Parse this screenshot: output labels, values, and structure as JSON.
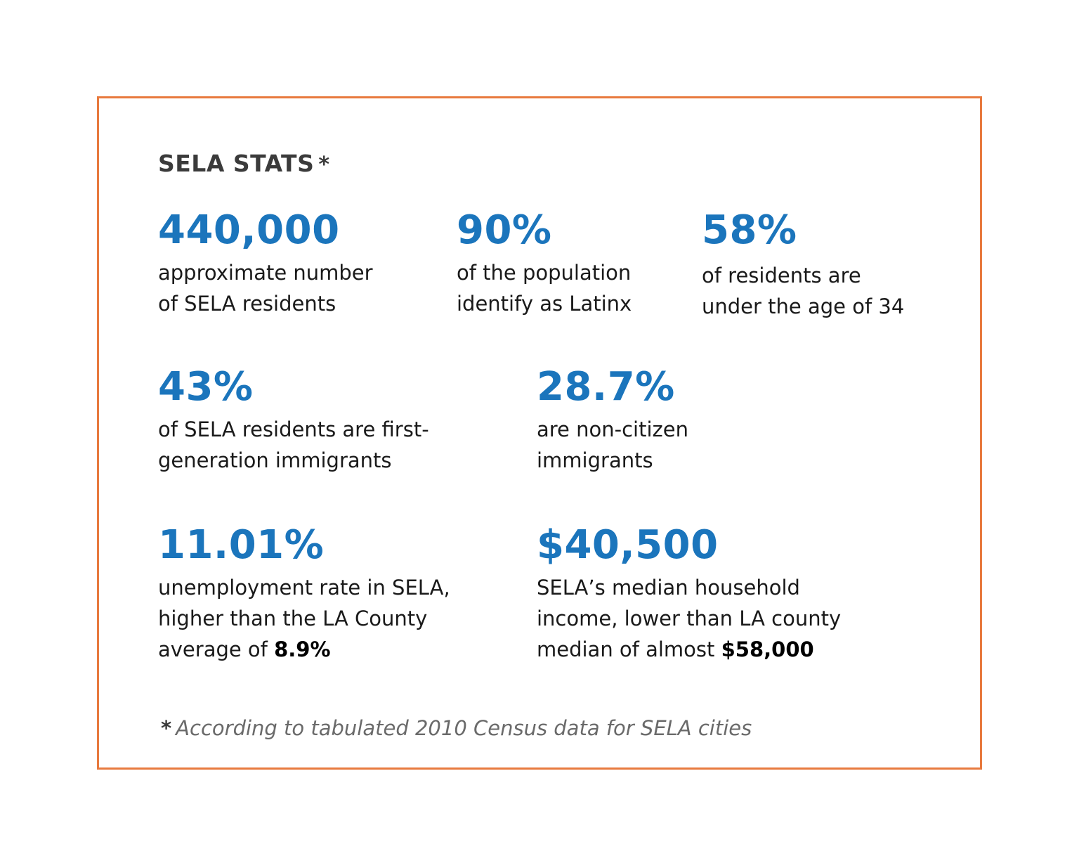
{
  "heading": {
    "title": "SELA STATS",
    "asterisk": "*"
  },
  "stats": [
    {
      "value": "440,000",
      "line1": "approximate number",
      "line2": "of SELA residents"
    },
    {
      "value": "90%",
      "line1": "of the population",
      "line2": "identify as Latinx"
    },
    {
      "value": "58%",
      "line1": "of residents are",
      "line2": "under the age of 34"
    },
    {
      "value": "43%",
      "line1": "of SELA residents are first-",
      "line2": "generation immigrants"
    },
    {
      "value": "28.7%",
      "line1": "are non-citizen",
      "line2": "immigrants"
    },
    {
      "value": "11.01%",
      "line1": "unemployment rate in SELA,",
      "line2": "higher than the LA County",
      "line3_prefix": "average of ",
      "line3_bold": "8.9%"
    },
    {
      "value": "$40,500",
      "line1": "SELA’s median household",
      "line2": "income, lower than LA county",
      "line3_prefix": "median of almost ",
      "line3_bold": "$58,000"
    }
  ],
  "footnote": {
    "asterisk": "*",
    "text": "According to tabulated 2010 Census data for SELA cities"
  },
  "colors": {
    "border": "#e87a3e",
    "stat_value": "#1b75bc",
    "heading": "#3b3b3b"
  }
}
